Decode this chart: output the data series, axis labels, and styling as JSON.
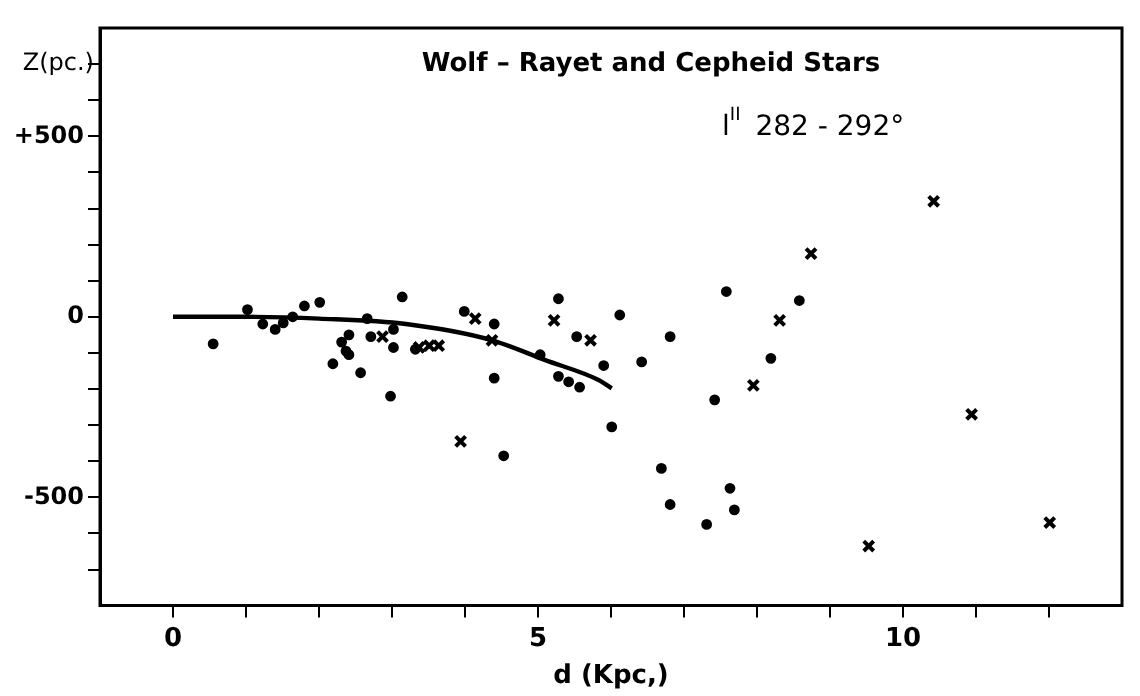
{
  "chart_data": {
    "type": "scatter",
    "title": "Wolf – Rayet and Cepheid Stars",
    "xlabel": "d (Kpc,)",
    "ylabel": "Z(pc.)",
    "annotations": [
      "l$^{II}$ 282 - 292°"
    ],
    "xlim": [
      -1,
      13
    ],
    "xticks": [
      {
        "value": 0,
        "label": "0"
      },
      {
        "value": 1,
        "label": null
      },
      {
        "value": 2,
        "label": null
      },
      {
        "value": 3,
        "label": null
      },
      {
        "value": 4,
        "label": null
      },
      {
        "value": 5,
        "label": "5"
      },
      {
        "value": 6,
        "label": null
      },
      {
        "value": 7,
        "label": null
      },
      {
        "value": 8,
        "label": null
      },
      {
        "value": 9,
        "label": null
      },
      {
        "value": 10,
        "label": "10"
      },
      {
        "value": 11,
        "label": null
      },
      {
        "value": 12,
        "label": null
      }
    ],
    "ylim": [
      -800,
      800
    ],
    "yticks": [
      {
        "value": -700,
        "label": null
      },
      {
        "value": -600,
        "label": null
      },
      {
        "value": -500,
        "label": "-500"
      },
      {
        "value": -400,
        "label": null
      },
      {
        "value": -300,
        "label": null
      },
      {
        "value": -200,
        "label": null
      },
      {
        "value": -100,
        "label": null
      },
      {
        "value": 0,
        "label": "0"
      },
      {
        "value": 100,
        "label": null
      },
      {
        "value": 200,
        "label": null
      },
      {
        "value": 300,
        "label": null
      },
      {
        "value": 400,
        "label": null
      },
      {
        "value": 500,
        "label": "+500"
      },
      {
        "value": 600,
        "label": null
      },
      {
        "value": 700,
        "label": null
      }
    ],
    "grid": false,
    "legend": false,
    "series": [
      {
        "marker": "circle",
        "color": "#000000",
        "x": [
          0.55,
          1.02,
          1.23,
          1.4,
          1.51,
          1.64,
          1.8,
          2.01,
          2.19,
          2.31,
          2.37,
          2.41,
          2.41,
          2.57,
          2.66,
          2.71,
          2.98,
          3.02,
          3.02,
          3.14,
          3.32,
          3.99,
          4.4,
          4.4,
          4.53,
          5.03,
          5.28,
          5.28,
          5.42,
          5.53,
          5.57,
          5.9,
          6.01,
          6.12,
          6.42,
          6.69,
          6.81,
          6.81,
          7.31,
          7.42,
          7.58,
          7.63,
          7.69,
          8.19,
          8.58
        ],
        "values": [
          -75,
          20,
          -20,
          -35,
          -17,
          0,
          30,
          40,
          -130,
          -70,
          -95,
          -50,
          -105,
          -155,
          -5,
          -55,
          -220,
          -35,
          -85,
          55,
          -90,
          15,
          -20,
          -170,
          -385,
          -105,
          50,
          -165,
          -180,
          -55,
          -195,
          -135,
          -305,
          5,
          -125,
          -420,
          -55,
          -520,
          -575,
          -230,
          70,
          -475,
          -535,
          -115,
          45
        ]
      },
      {
        "marker": "cross",
        "color": "#000000",
        "x": [
          2.87,
          3.37,
          3.51,
          3.64,
          3.94,
          4.14,
          4.37,
          5.22,
          5.72,
          7.95,
          8.31,
          8.74,
          9.53,
          10.42,
          10.94,
          12.01
        ],
        "values": [
          -55,
          -85,
          -80,
          -80,
          -345,
          -5,
          -65,
          -10,
          -65,
          -190,
          -10,
          175,
          -635,
          320,
          -270,
          -570
        ]
      },
      {
        "type": "line",
        "marker": "none",
        "line_style": "solid",
        "color": "#000000",
        "x": [
          0,
          1,
          2,
          3.19,
          4.37,
          5.1,
          5.83,
          6.01
        ],
        "values": [
          0,
          0,
          -5,
          -20,
          -65,
          -120,
          -175,
          -198
        ]
      }
    ]
  }
}
